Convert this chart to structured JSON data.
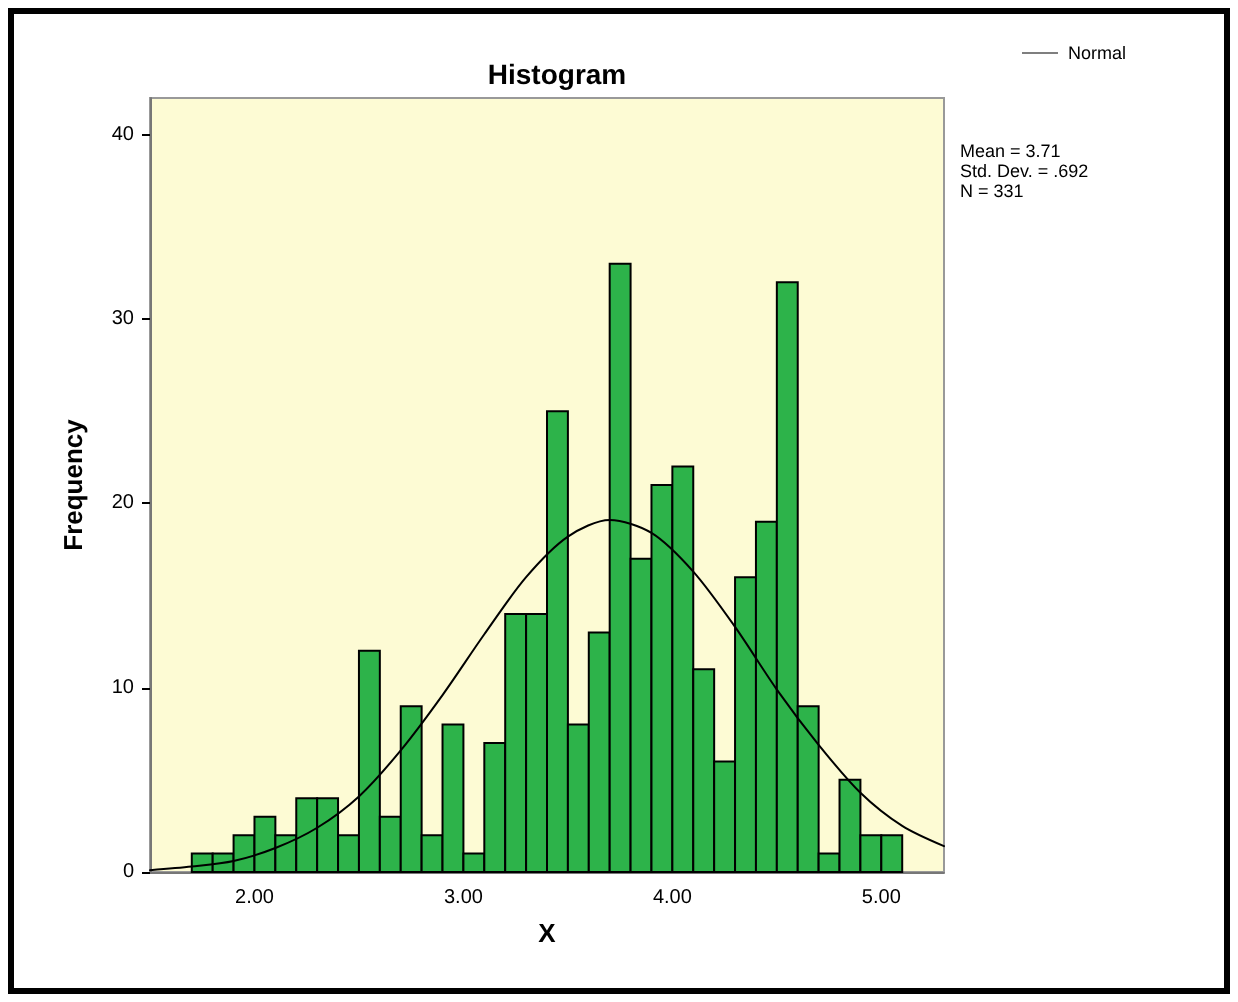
{
  "chart_data": {
    "type": "histogram",
    "title": "Histogram",
    "xlabel": "X",
    "ylabel": "Frequency",
    "annotations": [
      "Mean = 3.71",
      "Std. Dev. = .692",
      "N = 331"
    ],
    "bins": [
      1.7,
      1.8,
      1.9,
      2.0,
      2.1,
      2.2,
      2.3,
      2.4,
      2.5,
      2.6,
      2.7,
      2.8,
      2.9,
      3.0,
      3.1,
      3.2,
      3.3,
      3.4,
      3.5,
      3.6,
      3.7,
      3.8,
      3.9,
      4.0,
      4.1,
      4.2,
      4.3,
      4.4,
      4.5,
      4.6,
      4.7,
      4.8,
      4.9,
      5.0,
      5.1
    ],
    "series": [
      {
        "color": "#2db34a",
        "values": [
          1,
          1,
          2,
          3,
          2,
          4,
          4,
          2,
          12,
          3,
          9,
          2,
          8,
          1,
          7,
          14,
          14,
          25,
          8,
          13,
          33,
          17,
          21,
          22,
          11,
          6,
          16,
          19,
          32,
          9,
          1,
          5,
          2,
          2
        ]
      },
      {
        "type": "line",
        "name": "Normal",
        "color": "#000000",
        "x": [
          1.5,
          1.7,
          1.9,
          2.1,
          2.3,
          2.5,
          2.7,
          2.9,
          3.1,
          3.3,
          3.5,
          3.7,
          3.9,
          4.1,
          4.3,
          4.5,
          4.7,
          4.9,
          5.1,
          5.3
        ],
        "values": [
          0.1,
          0.3,
          0.6,
          1.3,
          2.4,
          4.1,
          6.6,
          9.6,
          12.9,
          16.0,
          18.2,
          19.1,
          18.4,
          16.3,
          13.3,
          9.9,
          6.9,
          4.3,
          2.5,
          1.4
        ]
      }
    ],
    "xlim": [
      1.5,
      5.3
    ],
    "xticks": [
      {
        "value": 2,
        "label": "2.00"
      },
      {
        "value": 3,
        "label": "3.00"
      },
      {
        "value": 4,
        "label": "4.00"
      },
      {
        "value": 5,
        "label": "5.00"
      }
    ],
    "ylim": [
      0,
      42
    ],
    "yticks": [
      0,
      10,
      20,
      30,
      40
    ],
    "grid": false,
    "legend": "top right"
  }
}
